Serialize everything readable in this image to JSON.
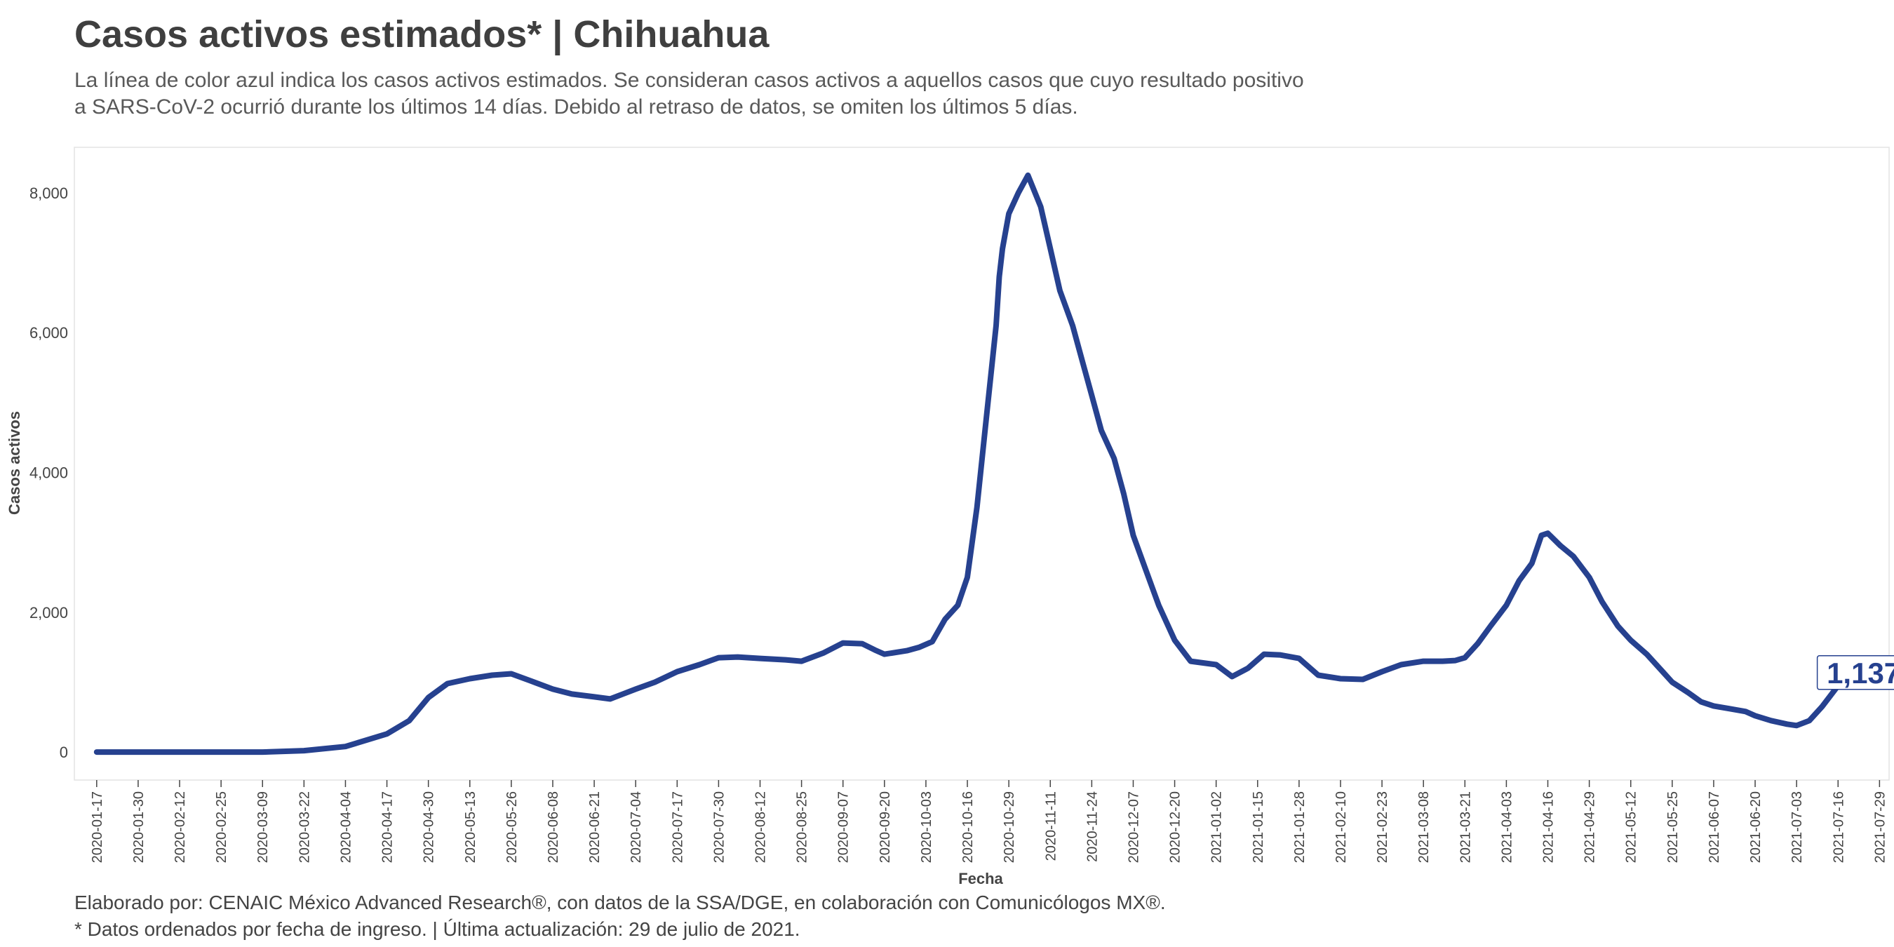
{
  "header": {
    "title": "Casos activos estimados* | Chihuahua",
    "subtitle_line1": "La línea de color azul indica los casos activos estimados. Se consideran casos activos a aquellos casos que cuyo resultado positivo",
    "subtitle_line2": "a SARS-CoV-2 ocurrió durante los últimos 14 días. Debido al retraso de datos, se omiten los últimos 5 días."
  },
  "caption": {
    "line1": "Elaborado por: CENAIC México Advanced Research®, con datos de la SSA/DGE, en colaboración con Comunicólogos MX®.",
    "line2": "* Datos ordenados por fecha de ingreso. | Última actualización: 29 de julio de 2021."
  },
  "colors": {
    "line": "#26418f",
    "grid_border": "#e3e3e3",
    "text": "#444444"
  },
  "chart_data": {
    "type": "line",
    "xlabel": "Fecha",
    "ylabel": "Casos activos",
    "x_range": [
      "2020-01-10",
      "2021-08-01"
    ],
    "ylim": [
      -400,
      8650
    ],
    "yticks": [
      0,
      2000,
      4000,
      6000,
      8000
    ],
    "ytick_labels": [
      "0",
      "2,000",
      "4,000",
      "6,000",
      "8,000"
    ],
    "xticks": [
      "2020-01-17",
      "2020-01-30",
      "2020-02-12",
      "2020-02-25",
      "2020-03-09",
      "2020-03-22",
      "2020-04-04",
      "2020-04-17",
      "2020-04-30",
      "2020-05-13",
      "2020-05-26",
      "2020-06-08",
      "2020-06-21",
      "2020-07-04",
      "2020-07-17",
      "2020-07-30",
      "2020-08-12",
      "2020-08-25",
      "2020-09-07",
      "2020-09-20",
      "2020-10-03",
      "2020-10-16",
      "2020-10-29",
      "2020-11-11",
      "2020-11-24",
      "2020-12-07",
      "2020-12-20",
      "2021-01-02",
      "2021-01-15",
      "2021-01-28",
      "2021-02-10",
      "2021-02-23",
      "2021-03-08",
      "2021-03-21",
      "2021-04-03",
      "2021-04-16",
      "2021-04-29",
      "2021-05-12",
      "2021-05-25",
      "2021-06-07",
      "2021-06-20",
      "2021-07-03",
      "2021-07-16",
      "2021-07-29"
    ],
    "grid": false,
    "last_value_label": "1,137",
    "series": [
      {
        "x": [
          "2020-01-17",
          "2020-02-15",
          "2020-03-09",
          "2020-03-22",
          "2020-04-04",
          "2020-04-17",
          "2020-04-24",
          "2020-04-30",
          "2020-05-06",
          "2020-05-13",
          "2020-05-20",
          "2020-05-26",
          "2020-06-01",
          "2020-06-08",
          "2020-06-14",
          "2020-06-21",
          "2020-06-26",
          "2020-07-04",
          "2020-07-10",
          "2020-07-17",
          "2020-07-24",
          "2020-07-30",
          "2020-08-05",
          "2020-08-12",
          "2020-08-20",
          "2020-08-25",
          "2020-09-01",
          "2020-09-07",
          "2020-09-13",
          "2020-09-17",
          "2020-09-20",
          "2020-09-27",
          "2020-10-01",
          "2020-10-05",
          "2020-10-09",
          "2020-10-13",
          "2020-10-16",
          "2020-10-19",
          "2020-10-22",
          "2020-10-25",
          "2020-10-26",
          "2020-10-27",
          "2020-10-29",
          "2020-11-01",
          "2020-11-04",
          "2020-11-08",
          "2020-11-11",
          "2020-11-14",
          "2020-11-18",
          "2020-11-21",
          "2020-11-24",
          "2020-11-27",
          "2020-12-01",
          "2020-12-04",
          "2020-12-07",
          "2020-12-11",
          "2020-12-15",
          "2020-12-20",
          "2020-12-25",
          "2021-01-02",
          "2021-01-07",
          "2021-01-12",
          "2021-01-17",
          "2021-01-22",
          "2021-01-28",
          "2021-02-03",
          "2021-02-10",
          "2021-02-17",
          "2021-02-23",
          "2021-03-01",
          "2021-03-08",
          "2021-03-14",
          "2021-03-18",
          "2021-03-21",
          "2021-03-25",
          "2021-03-29",
          "2021-04-03",
          "2021-04-07",
          "2021-04-11",
          "2021-04-14",
          "2021-04-16",
          "2021-04-20",
          "2021-04-24",
          "2021-04-29",
          "2021-05-03",
          "2021-05-08",
          "2021-05-12",
          "2021-05-17",
          "2021-05-22",
          "2021-05-25",
          "2021-05-30",
          "2021-06-03",
          "2021-06-07",
          "2021-06-12",
          "2021-06-17",
          "2021-06-20",
          "2021-06-25",
          "2021-06-30",
          "2021-07-03",
          "2021-07-07",
          "2021-07-11",
          "2021-07-16",
          "2021-07-20",
          "2021-07-24"
        ],
        "y": [
          0,
          0,
          0,
          20,
          80,
          260,
          450,
          780,
          980,
          1050,
          1100,
          1120,
          1020,
          900,
          830,
          790,
          760,
          900,
          1000,
          1150,
          1250,
          1350,
          1360,
          1340,
          1320,
          1300,
          1420,
          1560,
          1550,
          1460,
          1400,
          1450,
          1500,
          1580,
          1900,
          2100,
          2500,
          3500,
          4800,
          6100,
          6800,
          7200,
          7700,
          8000,
          8250,
          7800,
          7200,
          6600,
          6100,
          5600,
          5100,
          4600,
          4200,
          3700,
          3100,
          2600,
          2100,
          1600,
          1300,
          1250,
          1080,
          1200,
          1400,
          1390,
          1340,
          1100,
          1050,
          1040,
          1150,
          1250,
          1300,
          1300,
          1310,
          1350,
          1550,
          1800,
          2100,
          2450,
          2700,
          3100,
          3130,
          2950,
          2800,
          2500,
          2150,
          1800,
          1600,
          1400,
          1150,
          1000,
          850,
          720,
          660,
          620,
          580,
          520,
          450,
          400,
          380,
          450,
          650,
          950,
          1050,
          1137
        ]
      }
    ]
  }
}
